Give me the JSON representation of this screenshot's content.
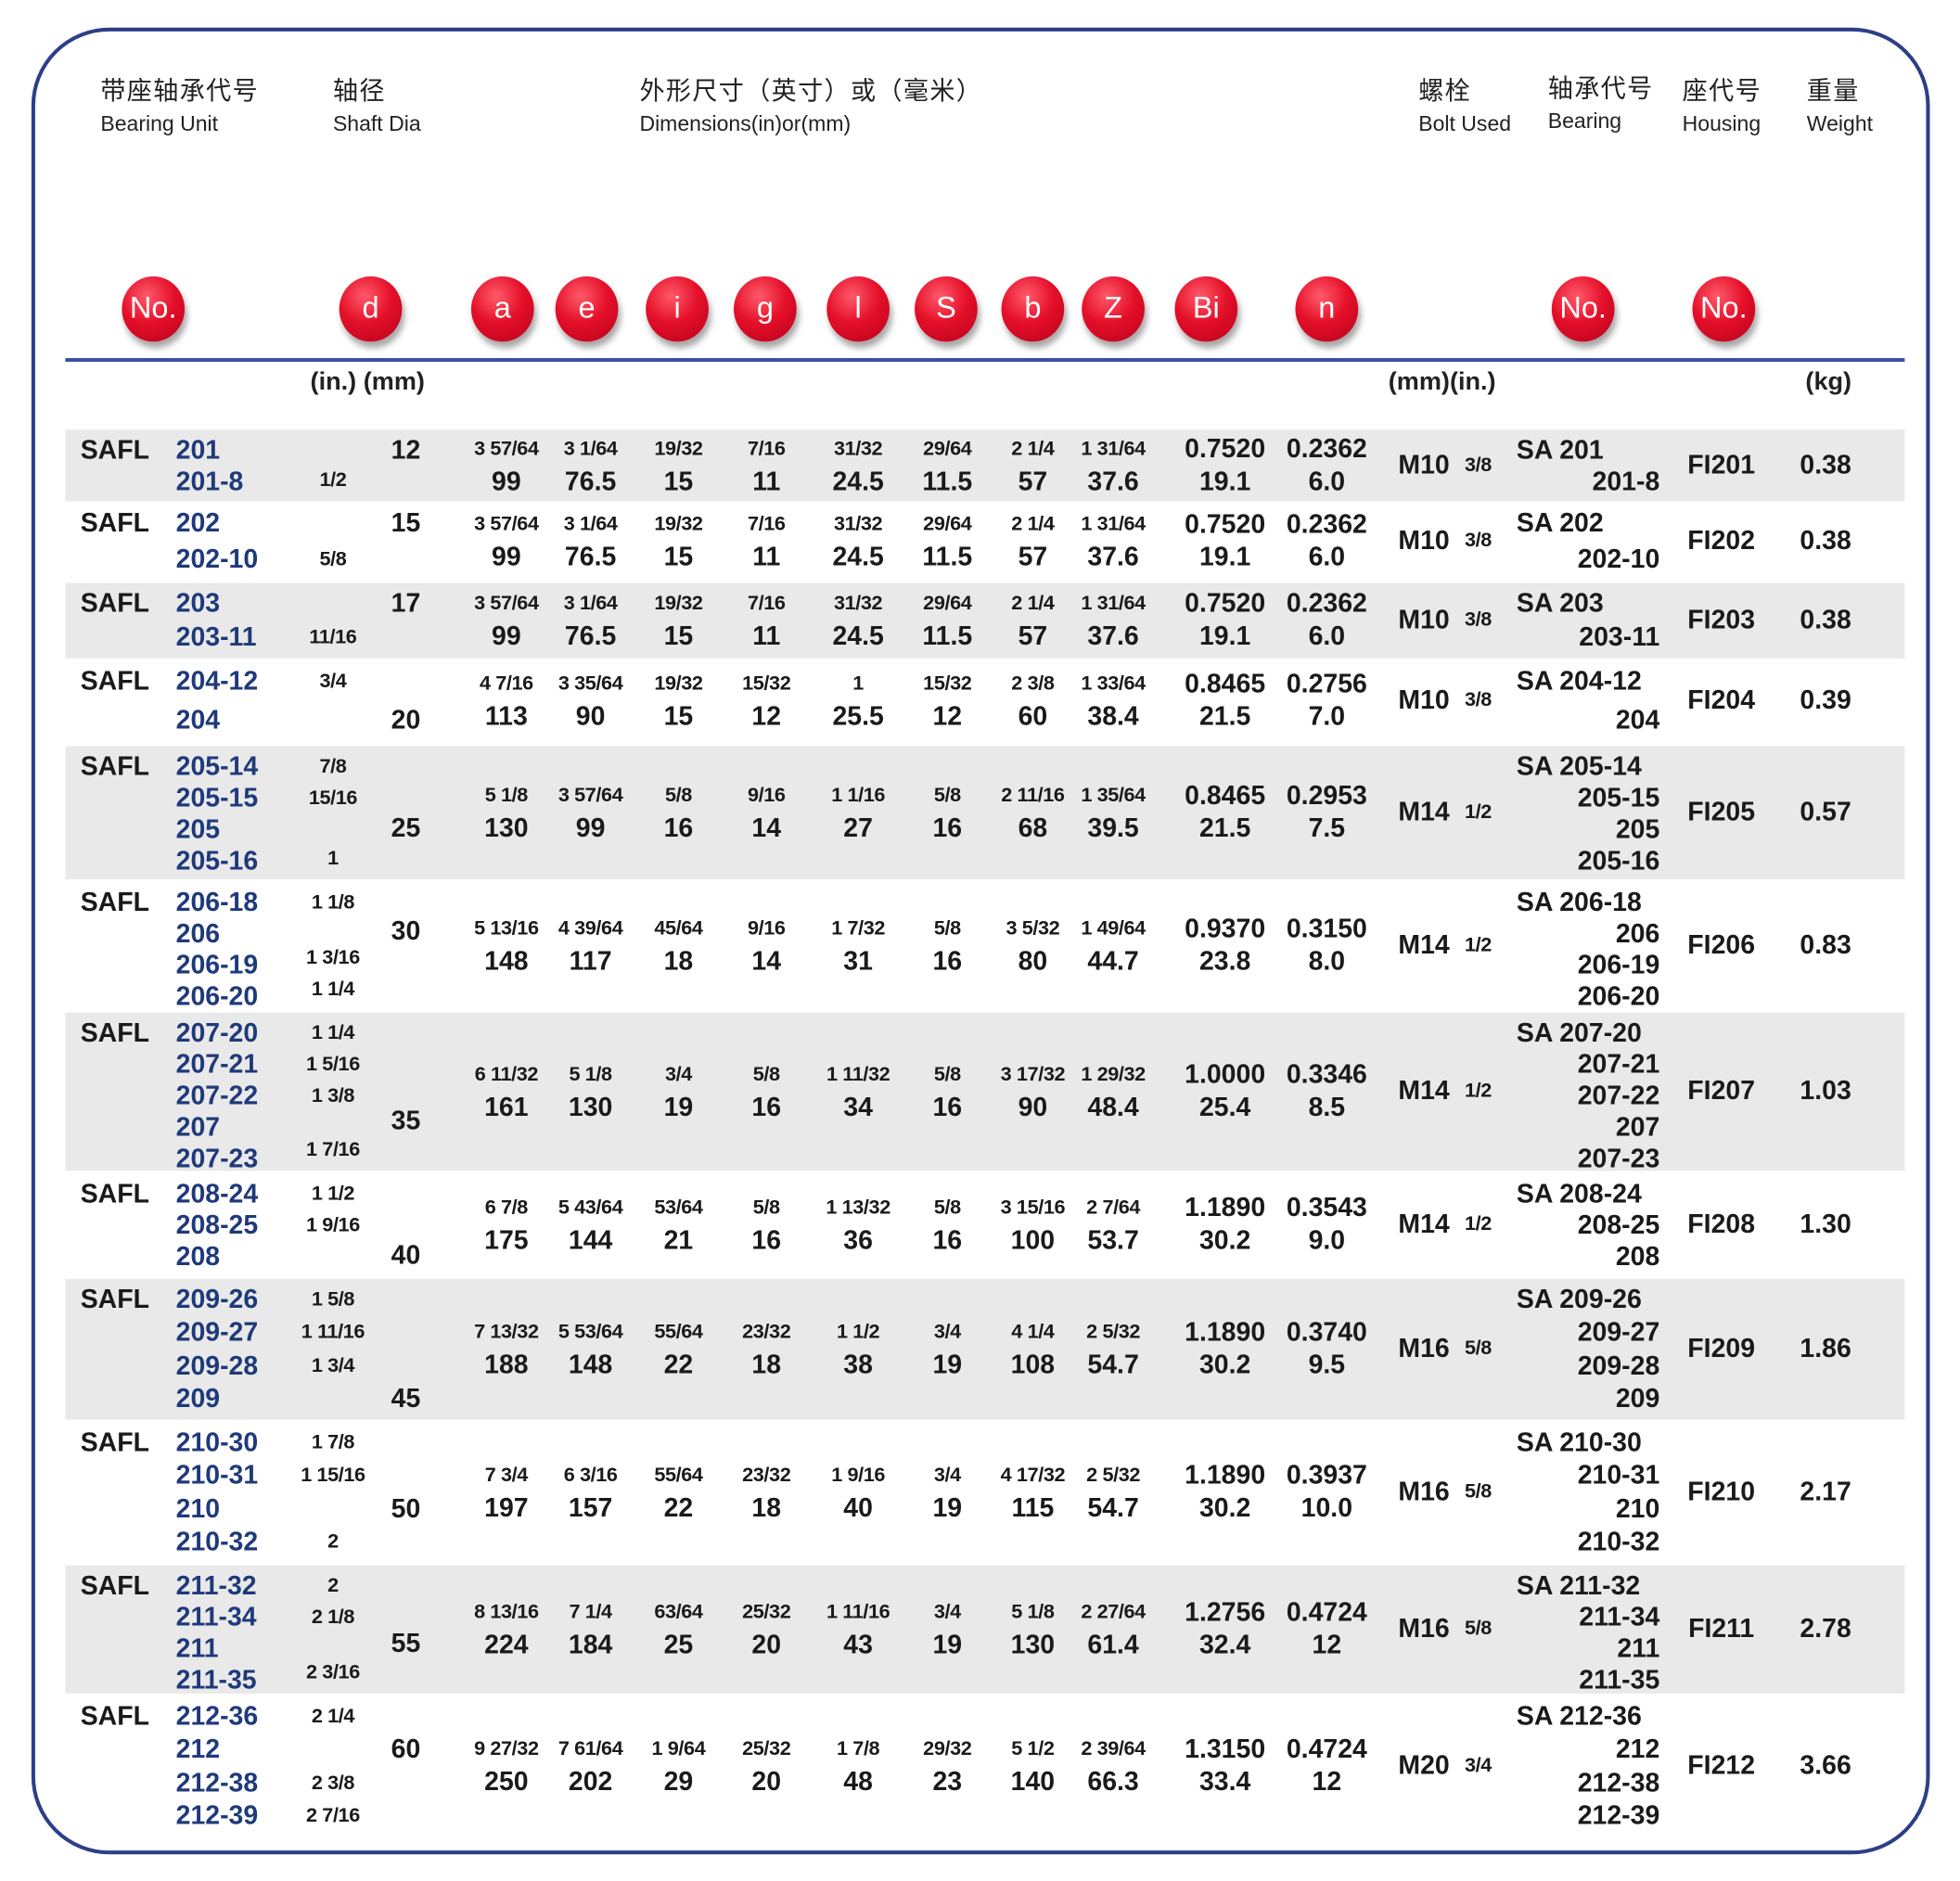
{
  "header": {
    "unit": {
      "cn": "带座轴承代号",
      "en": "Bearing Unit"
    },
    "shaft": {
      "cn": "轴径",
      "en": "Shaft Dia"
    },
    "dims": {
      "cn": "外形尺寸（英寸）或（毫米）",
      "en": "Dimensions(in)or(mm)"
    },
    "bolt": {
      "cn": "螺栓",
      "en": "Bolt Used"
    },
    "bearing": {
      "cn": "轴承代号",
      "en": "Bearing"
    },
    "housing": {
      "cn": "座代号",
      "en": "Housing"
    },
    "weight": {
      "cn": "重量",
      "en": "Weight"
    }
  },
  "symbols": [
    "No.",
    "d",
    "a",
    "e",
    "i",
    "g",
    "l",
    "S",
    "b",
    "Z",
    "Bi",
    "n",
    "No.",
    "No."
  ],
  "units": {
    "shaft": "(in.) (mm)",
    "bolt": "(mm)(in.)",
    "weight": "(kg)"
  },
  "colors": {
    "frame": "#2d3f86",
    "unit_number": "#1f3a7a",
    "band": "#e9e9e9",
    "symbol_ball": "#e5102a"
  },
  "rows": [
    {
      "series": "SAFL",
      "lines": [
        {
          "no": "201",
          "in": "",
          "mm": "12"
        },
        {
          "no": "201-8",
          "in": "1/2",
          "mm": ""
        }
      ],
      "dims": [
        [
          "3 57/64",
          "99"
        ],
        [
          "3 1/64",
          "76.5"
        ],
        [
          "19/32",
          "15"
        ],
        [
          "7/16",
          "11"
        ],
        [
          "31/32",
          "24.5"
        ],
        [
          "29/64",
          "11.5"
        ],
        [
          "2 1/4",
          "57"
        ],
        [
          "1 31/64",
          "37.6"
        ],
        [
          "0.7520",
          "19.1"
        ],
        [
          "0.2362",
          "6.0"
        ]
      ],
      "bolt": "M10",
      "bolt_in": "3/8",
      "bearing": [
        "SA 201",
        "201-8"
      ],
      "housing": "FI201",
      "weight": "0.38"
    },
    {
      "series": "SAFL",
      "lines": [
        {
          "no": "202",
          "in": "",
          "mm": "15"
        },
        {
          "no": "202-10",
          "in": "5/8",
          "mm": ""
        }
      ],
      "dims": [
        [
          "3 57/64",
          "99"
        ],
        [
          "3 1/64",
          "76.5"
        ],
        [
          "19/32",
          "15"
        ],
        [
          "7/16",
          "11"
        ],
        [
          "31/32",
          "24.5"
        ],
        [
          "29/64",
          "11.5"
        ],
        [
          "2 1/4",
          "57"
        ],
        [
          "1 31/64",
          "37.6"
        ],
        [
          "0.7520",
          "19.1"
        ],
        [
          "0.2362",
          "6.0"
        ]
      ],
      "bolt": "M10",
      "bolt_in": "3/8",
      "bearing": [
        "SA 202",
        "202-10"
      ],
      "housing": "FI202",
      "weight": "0.38"
    },
    {
      "series": "SAFL",
      "lines": [
        {
          "no": "203",
          "in": "",
          "mm": "17"
        },
        {
          "no": "203-11",
          "in": "11/16",
          "mm": ""
        }
      ],
      "dims": [
        [
          "3 57/64",
          "99"
        ],
        [
          "3 1/64",
          "76.5"
        ],
        [
          "19/32",
          "15"
        ],
        [
          "7/16",
          "11"
        ],
        [
          "31/32",
          "24.5"
        ],
        [
          "29/64",
          "11.5"
        ],
        [
          "2 1/4",
          "57"
        ],
        [
          "1 31/64",
          "37.6"
        ],
        [
          "0.7520",
          "19.1"
        ],
        [
          "0.2362",
          "6.0"
        ]
      ],
      "bolt": "M10",
      "bolt_in": "3/8",
      "bearing": [
        "SA 203",
        "203-11"
      ],
      "housing": "FI203",
      "weight": "0.38"
    },
    {
      "series": "SAFL",
      "lines": [
        {
          "no": "204-12",
          "in": "3/4",
          "mm": ""
        },
        {
          "no": "204",
          "in": "",
          "mm": "20"
        }
      ],
      "dims": [
        [
          "4 7/16",
          "113"
        ],
        [
          "3 35/64",
          "90"
        ],
        [
          "19/32",
          "15"
        ],
        [
          "15/32",
          "12"
        ],
        [
          "1",
          "25.5"
        ],
        [
          "15/32",
          "12"
        ],
        [
          "2 3/8",
          "60"
        ],
        [
          "1 33/64",
          "38.4"
        ],
        [
          "0.8465",
          "21.5"
        ],
        [
          "0.2756",
          "7.0"
        ]
      ],
      "bolt": "M10",
      "bolt_in": "3/8",
      "bearing": [
        "SA 204-12",
        "204"
      ],
      "housing": "FI204",
      "weight": "0.39"
    },
    {
      "series": "SAFL",
      "lines": [
        {
          "no": "205-14",
          "in": "7/8",
          "mm": ""
        },
        {
          "no": "205-15",
          "in": "15/16",
          "mm": ""
        },
        {
          "no": "205",
          "in": "",
          "mm": "25"
        },
        {
          "no": "205-16",
          "in": "1",
          "mm": ""
        }
      ],
      "dims": [
        [
          "5 1/8",
          "130"
        ],
        [
          "3 57/64",
          "99"
        ],
        [
          "5/8",
          "16"
        ],
        [
          "9/16",
          "14"
        ],
        [
          "1 1/16",
          "27"
        ],
        [
          "5/8",
          "16"
        ],
        [
          "2 11/16",
          "68"
        ],
        [
          "1 35/64",
          "39.5"
        ],
        [
          "0.8465",
          "21.5"
        ],
        [
          "0.2953",
          "7.5"
        ]
      ],
      "bolt": "M14",
      "bolt_in": "1/2",
      "bearing": [
        "SA 205-14",
        "205-15",
        "205",
        "205-16"
      ],
      "housing": "FI205",
      "weight": "0.57"
    },
    {
      "series": "SAFL",
      "lines": [
        {
          "no": "206-18",
          "in": "1 1/8",
          "mm": ""
        },
        {
          "no": "206",
          "in": "",
          "mm": "30"
        },
        {
          "no": "206-19",
          "in": "1 3/16",
          "mm": ""
        },
        {
          "no": "206-20",
          "in": "1 1/4",
          "mm": ""
        }
      ],
      "dims": [
        [
          "5 13/16",
          "148"
        ],
        [
          "4 39/64",
          "117"
        ],
        [
          "45/64",
          "18"
        ],
        [
          "9/16",
          "14"
        ],
        [
          "1 7/32",
          "31"
        ],
        [
          "5/8",
          "16"
        ],
        [
          "3 5/32",
          "80"
        ],
        [
          "1 49/64",
          "44.7"
        ],
        [
          "0.9370",
          "23.8"
        ],
        [
          "0.3150",
          "8.0"
        ]
      ],
      "bolt": "M14",
      "bolt_in": "1/2",
      "bearing": [
        "SA 206-18",
        "206",
        "206-19",
        "206-20"
      ],
      "housing": "FI206",
      "weight": "0.83"
    },
    {
      "series": "SAFL",
      "lines": [
        {
          "no": "207-20",
          "in": "1 1/4",
          "mm": ""
        },
        {
          "no": "207-21",
          "in": "1 5/16",
          "mm": ""
        },
        {
          "no": "207-22",
          "in": "1 3/8",
          "mm": ""
        },
        {
          "no": "207",
          "in": "",
          "mm": "35"
        },
        {
          "no": "207-23",
          "in": "1 7/16",
          "mm": ""
        }
      ],
      "dims": [
        [
          "6 11/32",
          "161"
        ],
        [
          "5 1/8",
          "130"
        ],
        [
          "3/4",
          "19"
        ],
        [
          "5/8",
          "16"
        ],
        [
          "1 11/32",
          "34"
        ],
        [
          "5/8",
          "16"
        ],
        [
          "3 17/32",
          "90"
        ],
        [
          "1 29/32",
          "48.4"
        ],
        [
          "1.0000",
          "25.4"
        ],
        [
          "0.3346",
          "8.5"
        ]
      ],
      "bolt": "M14",
      "bolt_in": "1/2",
      "bearing": [
        "SA 207-20",
        "207-21",
        "207-22",
        "207",
        "207-23"
      ],
      "housing": "FI207",
      "weight": "1.03"
    },
    {
      "series": "SAFL",
      "lines": [
        {
          "no": "208-24",
          "in": "1 1/2",
          "mm": ""
        },
        {
          "no": "208-25",
          "in": "1 9/16",
          "mm": ""
        },
        {
          "no": "208",
          "in": "",
          "mm": "40"
        }
      ],
      "dims": [
        [
          "6 7/8",
          "175"
        ],
        [
          "5 43/64",
          "144"
        ],
        [
          "53/64",
          "21"
        ],
        [
          "5/8",
          "16"
        ],
        [
          "1 13/32",
          "36"
        ],
        [
          "5/8",
          "16"
        ],
        [
          "3 15/16",
          "100"
        ],
        [
          "2 7/64",
          "53.7"
        ],
        [
          "1.1890",
          "30.2"
        ],
        [
          "0.3543",
          "9.0"
        ]
      ],
      "bolt": "M14",
      "bolt_in": "1/2",
      "bearing": [
        "SA 208-24",
        "208-25",
        "208"
      ],
      "housing": "FI208",
      "weight": "1.30"
    },
    {
      "series": "SAFL",
      "lines": [
        {
          "no": "209-26",
          "in": "1 5/8",
          "mm": ""
        },
        {
          "no": "209-27",
          "in": "1 11/16",
          "mm": ""
        },
        {
          "no": "209-28",
          "in": "1 3/4",
          "mm": ""
        },
        {
          "no": "209",
          "in": "",
          "mm": "45"
        }
      ],
      "dims": [
        [
          "7 13/32",
          "188"
        ],
        [
          "5 53/64",
          "148"
        ],
        [
          "55/64",
          "22"
        ],
        [
          "23/32",
          "18"
        ],
        [
          "1 1/2",
          "38"
        ],
        [
          "3/4",
          "19"
        ],
        [
          "4 1/4",
          "108"
        ],
        [
          "2 5/32",
          "54.7"
        ],
        [
          "1.1890",
          "30.2"
        ],
        [
          "0.3740",
          "9.5"
        ]
      ],
      "bolt": "M16",
      "bolt_in": "5/8",
      "bearing": [
        "SA 209-26",
        "209-27",
        "209-28",
        "209"
      ],
      "housing": "FI209",
      "weight": "1.86"
    },
    {
      "series": "SAFL",
      "lines": [
        {
          "no": "210-30",
          "in": "1 7/8",
          "mm": ""
        },
        {
          "no": "210-31",
          "in": "1 15/16",
          "mm": ""
        },
        {
          "no": "210",
          "in": "",
          "mm": "50"
        },
        {
          "no": "210-32",
          "in": "2",
          "mm": ""
        }
      ],
      "dims": [
        [
          "7 3/4",
          "197"
        ],
        [
          "6 3/16",
          "157"
        ],
        [
          "55/64",
          "22"
        ],
        [
          "23/32",
          "18"
        ],
        [
          "1 9/16",
          "40"
        ],
        [
          "3/4",
          "19"
        ],
        [
          "4 17/32",
          "115"
        ],
        [
          "2 5/32",
          "54.7"
        ],
        [
          "1.1890",
          "30.2"
        ],
        [
          "0.3937",
          "10.0"
        ]
      ],
      "bolt": "M16",
      "bolt_in": "5/8",
      "bearing": [
        "SA 210-30",
        "210-31",
        "210",
        "210-32"
      ],
      "housing": "FI210",
      "weight": "2.17"
    },
    {
      "series": "SAFL",
      "lines": [
        {
          "no": "211-32",
          "in": "2",
          "mm": ""
        },
        {
          "no": "211-34",
          "in": "2 1/8",
          "mm": ""
        },
        {
          "no": "211",
          "in": "",
          "mm": "55"
        },
        {
          "no": "211-35",
          "in": "2 3/16",
          "mm": ""
        }
      ],
      "dims": [
        [
          "8 13/16",
          "224"
        ],
        [
          "7 1/4",
          "184"
        ],
        [
          "63/64",
          "25"
        ],
        [
          "25/32",
          "20"
        ],
        [
          "1 11/16",
          "43"
        ],
        [
          "3/4",
          "19"
        ],
        [
          "5 1/8",
          "130"
        ],
        [
          "2 27/64",
          "61.4"
        ],
        [
          "1.2756",
          "32.4"
        ],
        [
          "0.4724",
          "12"
        ]
      ],
      "bolt": "M16",
      "bolt_in": "5/8",
      "bearing": [
        "SA 211-32",
        "211-34",
        "211",
        "211-35"
      ],
      "housing": "FI211",
      "weight": "2.78"
    },
    {
      "series": "SAFL",
      "lines": [
        {
          "no": "212-36",
          "in": "2 1/4",
          "mm": ""
        },
        {
          "no": "212",
          "in": "",
          "mm": "60"
        },
        {
          "no": "212-38",
          "in": "2 3/8",
          "mm": ""
        },
        {
          "no": "212-39",
          "in": "2 7/16",
          "mm": ""
        }
      ],
      "dims": [
        [
          "9 27/32",
          "250"
        ],
        [
          "7 61/64",
          "202"
        ],
        [
          "1 9/64",
          "29"
        ],
        [
          "25/32",
          "20"
        ],
        [
          "1 7/8",
          "48"
        ],
        [
          "29/32",
          "23"
        ],
        [
          "5 1/2",
          "140"
        ],
        [
          "2 39/64",
          "66.3"
        ],
        [
          "1.3150",
          "33.4"
        ],
        [
          "0.4724",
          "12"
        ]
      ],
      "bolt": "M20",
      "bolt_in": "3/4",
      "bearing": [
        "SA 212-36",
        "212",
        "212-38",
        "212-39"
      ],
      "housing": "FI212",
      "weight": "3.66"
    }
  ]
}
